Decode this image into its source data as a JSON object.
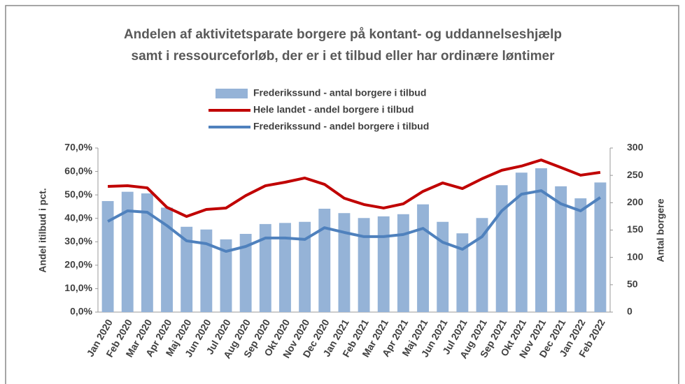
{
  "chart_data": {
    "type": "bar_line",
    "title": "Andelen af aktivitetsparate borgere på kontant- og uddannelseshjælp",
    "subtitle": "samt i ressourceforløb, der er i et tilbud eller har ordinære løntimer",
    "ylabel": "Andel itilbud i pct.",
    "y2label": "Antal borgere",
    "categories": [
      "Jan 2020",
      "Feb 2020",
      "Mar 2020",
      "Apr 2020",
      "Maj 2020",
      "Jun 2020",
      "Jul 2020",
      "Aug 2020",
      "Sep 2020",
      "Okt 2020",
      "Nov 2020",
      "Dec 2020",
      "Jan 2021",
      "Feb 2021",
      "Mar 2021",
      "Apr 2021",
      "Maj 2021",
      "Jun 2021",
      "Jul 2021",
      "Aug 2021",
      "Sep 2021",
      "Okt 2021",
      "Nov 2021",
      "Dec 2021",
      "Jan 2022",
      "Feb 2022"
    ],
    "series": [
      {
        "name": "Frederikssund - antal borgere i tilbud",
        "type": "bar",
        "axis": "y2",
        "color": "#95b3d7",
        "values": [
          203,
          220,
          217,
          191,
          156,
          151,
          133,
          143,
          161,
          163,
          165,
          189,
          181,
          172,
          175,
          179,
          197,
          165,
          144,
          172,
          232,
          255,
          263,
          230,
          208,
          237
        ]
      },
      {
        "name": "Hele landet - andel borgere i tilbud",
        "type": "line",
        "axis": "y",
        "color": "#c00000",
        "values": [
          53.6,
          53.9,
          53.0,
          44.7,
          40.8,
          43.8,
          44.4,
          49.7,
          53.9,
          55.4,
          57.2,
          54.5,
          48.6,
          45.9,
          44.4,
          46.2,
          51.5,
          55.1,
          52.7,
          56.9,
          60.5,
          62.3,
          64.9,
          61.7,
          58.4,
          59.6
        ]
      },
      {
        "name": "Frederikssund - andel borgere i tilbud",
        "type": "line",
        "axis": "y",
        "color": "#4f81bd",
        "values": [
          38.7,
          43.2,
          42.6,
          36.9,
          30.4,
          29.2,
          25.9,
          28.0,
          31.6,
          31.6,
          31.0,
          36.0,
          34.0,
          32.2,
          32.2,
          33.1,
          35.7,
          29.8,
          26.8,
          32.2,
          43.2,
          50.3,
          51.8,
          46.2,
          43.2,
          48.9
        ]
      }
    ],
    "ylim": [
      0,
      70
    ],
    "yticks": [
      {
        "value": 0,
        "label": "0,0%"
      },
      {
        "value": 10,
        "label": "10,0%"
      },
      {
        "value": 20,
        "label": "20,0%"
      },
      {
        "value": 30,
        "label": "30,0%"
      },
      {
        "value": 40,
        "label": "40,0%"
      },
      {
        "value": 50,
        "label": "50,0%"
      },
      {
        "value": 60,
        "label": "60,0%"
      },
      {
        "value": 70,
        "label": "70,0%"
      }
    ],
    "y2lim": [
      0,
      300
    ],
    "y2ticks": [
      0,
      50,
      100,
      150,
      200,
      250,
      300
    ],
    "grid": false,
    "legend": "top"
  }
}
